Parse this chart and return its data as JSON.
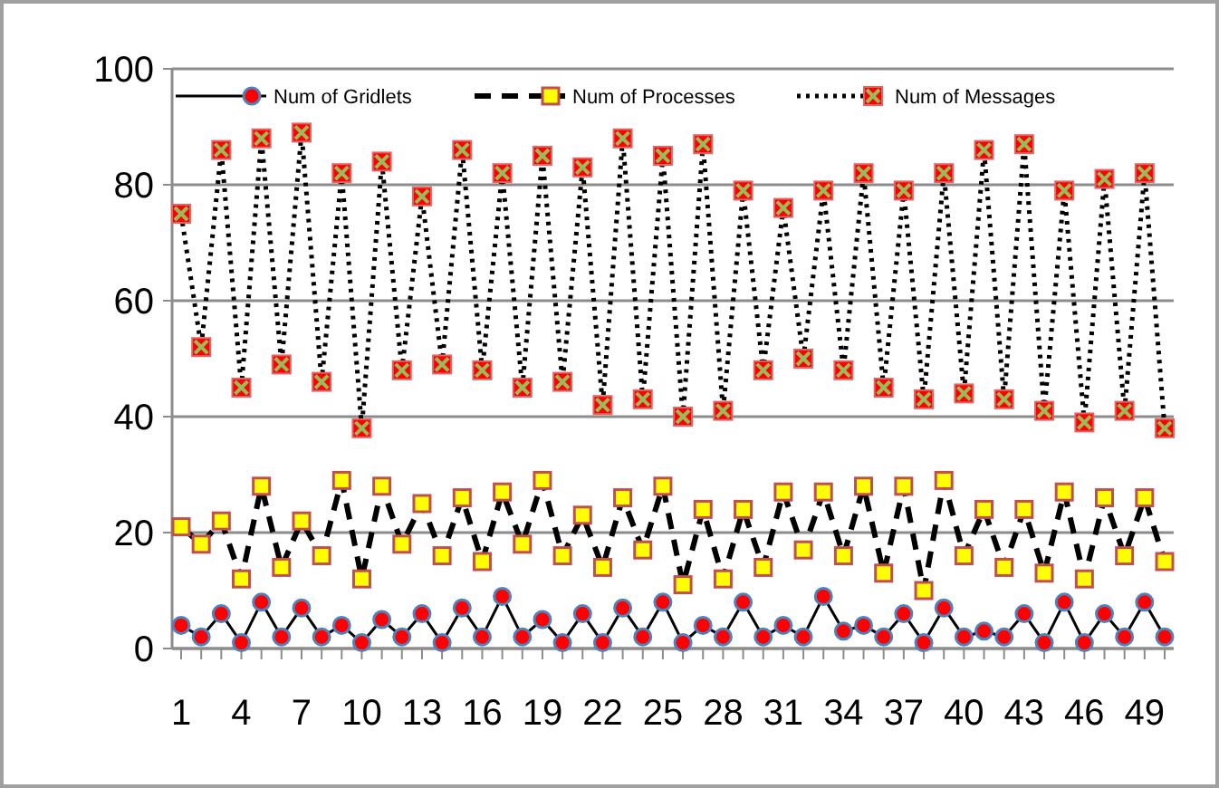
{
  "chart_data": {
    "type": "line",
    "categories": [
      "1",
      null,
      null,
      "4",
      null,
      null,
      "7",
      null,
      null,
      "10",
      null,
      null,
      "13",
      null,
      null,
      "16",
      null,
      null,
      "19",
      null,
      null,
      "22",
      null,
      null,
      "25",
      null,
      null,
      "28",
      null,
      null,
      "31",
      null,
      null,
      "34",
      null,
      null,
      "37",
      null,
      null,
      "40",
      null,
      null,
      "43",
      null,
      null,
      "46",
      null,
      null,
      "49",
      null
    ],
    "series": [
      {
        "name": "Num of Gridlets",
        "color": "#ff0000",
        "marker": "circle",
        "line_style": "solid",
        "values": [
          4,
          2,
          6,
          1,
          8,
          2,
          7,
          2,
          4,
          1,
          5,
          2,
          6,
          1,
          7,
          2,
          9,
          2,
          5,
          1,
          6,
          1,
          7,
          2,
          8,
          1,
          4,
          2,
          8,
          2,
          4,
          2,
          9,
          3,
          4,
          2,
          6,
          1,
          7,
          2,
          3,
          2,
          6,
          1,
          8,
          1,
          6,
          2,
          8,
          2
        ]
      },
      {
        "name": "Num of Processes",
        "color": "#ffff00",
        "marker": "square",
        "line_style": "dashed",
        "values": [
          21,
          18,
          22,
          12,
          28,
          14,
          22,
          16,
          29,
          12,
          28,
          18,
          25,
          16,
          26,
          15,
          27,
          18,
          29,
          16,
          23,
          14,
          26,
          17,
          28,
          11,
          24,
          12,
          24,
          14,
          27,
          17,
          27,
          16,
          28,
          13,
          28,
          10,
          29,
          16,
          24,
          14,
          24,
          13,
          27,
          12,
          26,
          16,
          26,
          15
        ]
      },
      {
        "name": "Num of Messages",
        "color": "#ff0000",
        "marker": "square",
        "line_style": "dotted",
        "values": [
          75,
          52,
          86,
          45,
          88,
          49,
          89,
          46,
          82,
          38,
          84,
          48,
          78,
          49,
          86,
          48,
          82,
          45,
          85,
          46,
          83,
          42,
          88,
          43,
          85,
          40,
          87,
          41,
          79,
          48,
          76,
          50,
          79,
          48,
          82,
          45,
          79,
          43,
          82,
          44,
          86,
          43,
          87,
          41,
          79,
          39,
          81,
          41,
          82,
          38
        ]
      }
    ],
    "ylim": [
      0,
      100
    ],
    "yticks": [
      0,
      20,
      40,
      60,
      80,
      100
    ],
    "grid": "y",
    "legend": "top"
  }
}
